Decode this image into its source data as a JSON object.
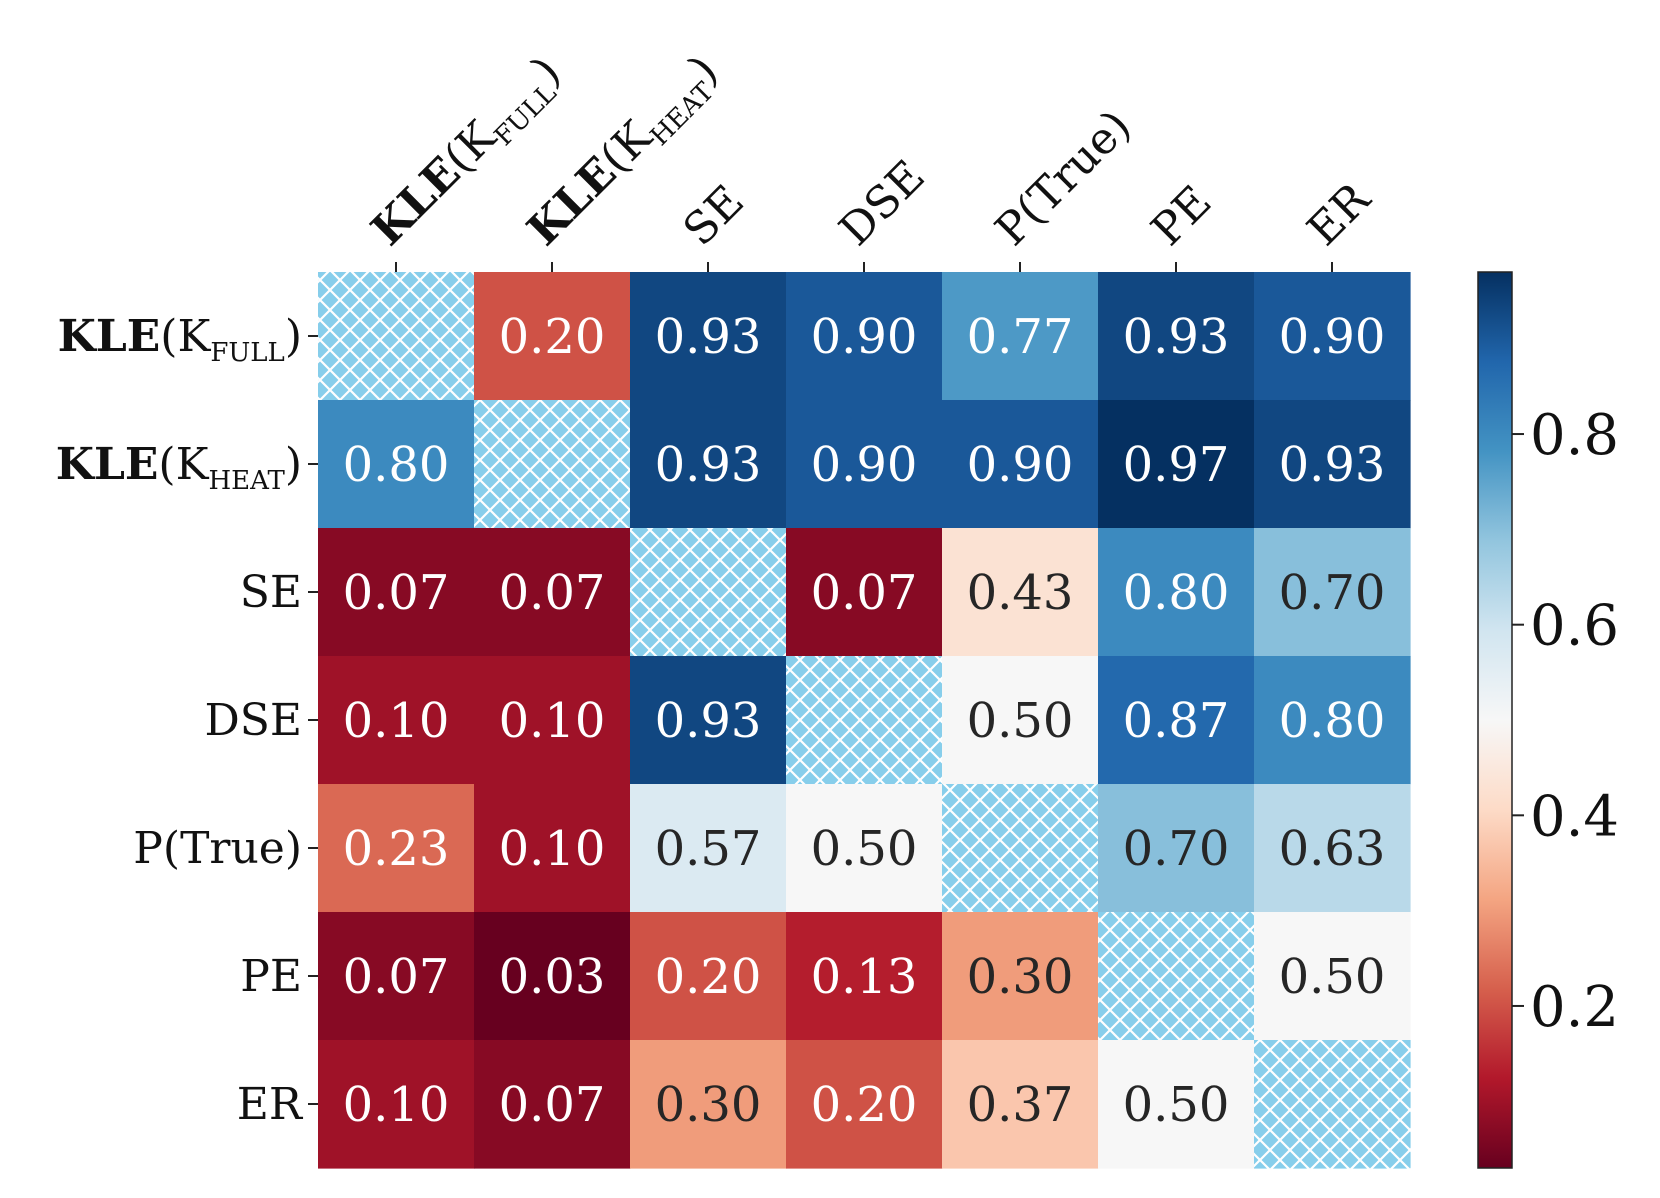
{
  "chart_data": {
    "type": "heatmap",
    "title": "",
    "row_labels": [
      {
        "bold": "KLE",
        "plain": "(K",
        "sub": "FULL",
        "close": ")"
      },
      {
        "bold": "KLE",
        "plain": "(K",
        "sub": "HEAT",
        "close": ")"
      },
      {
        "bold": "",
        "plain": "SE",
        "sub": "",
        "close": ""
      },
      {
        "bold": "",
        "plain": "DSE",
        "sub": "",
        "close": ""
      },
      {
        "bold": "",
        "plain": "P(True)",
        "sub": "",
        "close": ""
      },
      {
        "bold": "",
        "plain": "PE",
        "sub": "",
        "close": ""
      },
      {
        "bold": "",
        "plain": "ER",
        "sub": "",
        "close": ""
      }
    ],
    "col_labels": [
      {
        "bold": "KLE",
        "plain": "(K",
        "sub": "FULL",
        "close": ")"
      },
      {
        "bold": "KLE",
        "plain": "(K",
        "sub": "HEAT",
        "close": ")"
      },
      {
        "bold": "",
        "plain": "SE",
        "sub": "",
        "close": ""
      },
      {
        "bold": "",
        "plain": "DSE",
        "sub": "",
        "close": ""
      },
      {
        "bold": "",
        "plain": "P(True)",
        "sub": "",
        "close": ""
      },
      {
        "bold": "",
        "plain": "PE",
        "sub": "",
        "close": ""
      },
      {
        "bold": "",
        "plain": "ER",
        "sub": "",
        "close": ""
      }
    ],
    "values": [
      [
        null,
        0.2,
        0.93,
        0.9,
        0.77,
        0.93,
        0.9
      ],
      [
        0.8,
        null,
        0.93,
        0.9,
        0.9,
        0.97,
        0.93
      ],
      [
        0.07,
        0.07,
        null,
        0.07,
        0.43,
        0.8,
        0.7
      ],
      [
        0.1,
        0.1,
        0.93,
        null,
        0.5,
        0.87,
        0.8
      ],
      [
        0.23,
        0.1,
        0.57,
        0.5,
        null,
        0.7,
        0.63
      ],
      [
        0.07,
        0.03,
        0.2,
        0.13,
        0.3,
        null,
        0.5
      ],
      [
        0.1,
        0.07,
        0.3,
        0.2,
        0.37,
        0.5,
        null
      ]
    ],
    "value_labels": [
      [
        "",
        "0.20",
        "0.93",
        "0.90",
        "0.77",
        "0.93",
        "0.90"
      ],
      [
        "0.80",
        "",
        "0.93",
        "0.90",
        "0.90",
        "0.97",
        "0.93"
      ],
      [
        "0.07",
        "0.07",
        "",
        "0.07",
        "0.43",
        "0.80",
        "0.70"
      ],
      [
        "0.10",
        "0.10",
        "0.93",
        "",
        "0.50",
        "0.87",
        "0.80"
      ],
      [
        "0.23",
        "0.10",
        "0.57",
        "0.50",
        "",
        "0.70",
        "0.63"
      ],
      [
        "0.07",
        "0.03",
        "0.20",
        "0.13",
        "0.30",
        "",
        "0.50"
      ],
      [
        "0.10",
        "0.07",
        "0.30",
        "0.20",
        "0.37",
        "0.50",
        ""
      ]
    ],
    "diagonal": "hatched",
    "colormap": "RdBu",
    "vmin": 0.03,
    "vmax": 0.97,
    "colorbar": {
      "ticks": [
        0.2,
        0.4,
        0.6,
        0.8
      ],
      "tick_labels": [
        "0.2",
        "0.4",
        "0.6",
        "0.8"
      ],
      "placement": "right"
    }
  },
  "colors": {
    "hatch_fill": "#87CEEB",
    "hatch_line": "#ffffff",
    "dark_text": "#262626",
    "light_text": "#ffffff",
    "rdbu_stops": [
      "#67001f",
      "#b2182b",
      "#d6604d",
      "#f4a582",
      "#fddbc7",
      "#f7f7f7",
      "#d1e5f0",
      "#92c5de",
      "#4393c3",
      "#2166ac",
      "#053061"
    ]
  }
}
